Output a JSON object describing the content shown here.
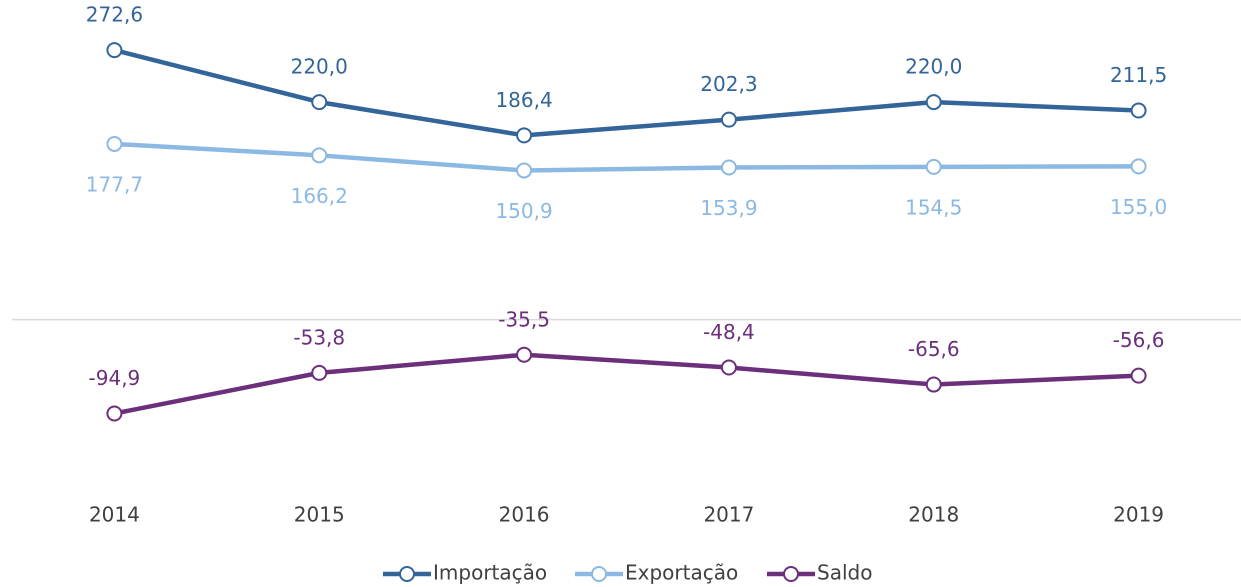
{
  "chart_data": {
    "type": "line",
    "categories": [
      "2014",
      "2015",
      "2016",
      "2017",
      "2018",
      "2019"
    ],
    "series": [
      {
        "name": "Importação",
        "color": "#33659a",
        "label_position": "above",
        "values": [
          272.6,
          220.0,
          186.4,
          202.3,
          220.0,
          211.5
        ],
        "value_labels": [
          "272,6",
          "220,0",
          "186,4",
          "202,3",
          "220,0",
          "211,5"
        ]
      },
      {
        "name": "Exportação",
        "color": "#8cb9e3",
        "label_position": "below",
        "values": [
          177.7,
          166.2,
          150.9,
          153.9,
          154.5,
          155.0
        ],
        "value_labels": [
          "177,7",
          "166,2",
          "150,9",
          "153,9",
          "154,5",
          "155,0"
        ]
      },
      {
        "name": "Saldo",
        "color": "#6b2f7c",
        "label_position": "above",
        "values": [
          -94.9,
          -53.8,
          -35.5,
          -48.4,
          -65.6,
          -56.6
        ],
        "value_labels": [
          "-94,9",
          "-53,8",
          "-35,5",
          "-48,4",
          "-65,6",
          "-56,6"
        ]
      }
    ],
    "ylim": [
      -150,
      300
    ],
    "legend": "bottom"
  }
}
